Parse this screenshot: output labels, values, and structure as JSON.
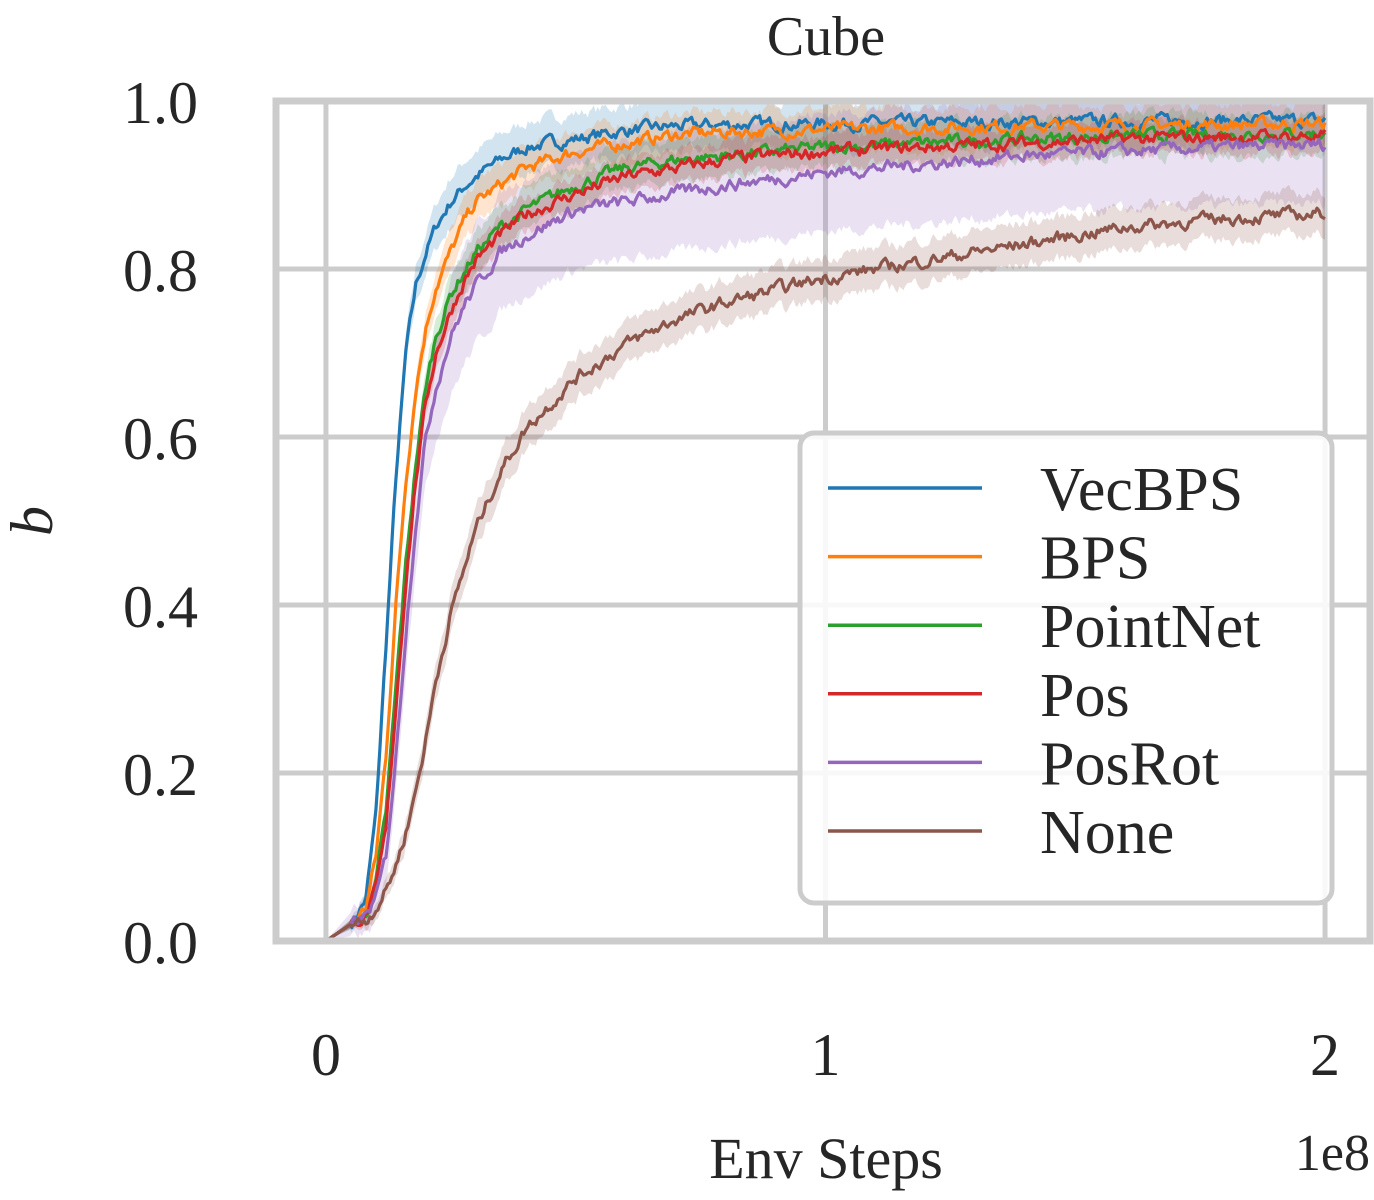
{
  "chart_data": {
    "type": "line",
    "title": "Cube",
    "xlabel": "Env Steps",
    "ylabel": "b",
    "x_offset_label": "1e8",
    "xlim": [
      -0.1,
      2.09
    ],
    "ylim": [
      0.0,
      1.0
    ],
    "xticks": [
      0,
      1,
      2
    ],
    "xtick_labels": [
      "0",
      "1",
      "2"
    ],
    "yticks": [
      0.0,
      0.2,
      0.4,
      0.6,
      0.8,
      1.0
    ],
    "ytick_labels": [
      "0.0",
      "0.2",
      "0.4",
      "0.6",
      "0.8",
      "1.0"
    ],
    "grid": true,
    "legend_position": "center-right",
    "x": [
      0.0,
      0.05,
      0.08,
      0.1,
      0.12,
      0.14,
      0.16,
      0.18,
      0.2,
      0.22,
      0.25,
      0.28,
      0.3,
      0.35,
      0.4,
      0.5,
      0.6,
      0.7,
      0.8,
      1.0,
      1.2,
      1.4,
      1.6,
      1.8,
      2.0
    ],
    "series": [
      {
        "name": "VecBPS",
        "color": "#1f77b4",
        "band": 0.03,
        "values": [
          0.0,
          0.02,
          0.05,
          0.15,
          0.35,
          0.55,
          0.7,
          0.78,
          0.82,
          0.85,
          0.88,
          0.9,
          0.91,
          0.93,
          0.945,
          0.955,
          0.965,
          0.97,
          0.972,
          0.973,
          0.974,
          0.975,
          0.976,
          0.977,
          0.977
        ]
      },
      {
        "name": "BPS",
        "color": "#ff7f0e",
        "band": 0.025,
        "values": [
          0.0,
          0.02,
          0.04,
          0.1,
          0.22,
          0.4,
          0.55,
          0.66,
          0.73,
          0.78,
          0.82,
          0.86,
          0.88,
          0.9,
          0.92,
          0.94,
          0.95,
          0.96,
          0.963,
          0.966,
          0.968,
          0.97,
          0.971,
          0.972,
          0.973
        ]
      },
      {
        "name": "PointNet",
        "color": "#2ca02c",
        "band": 0.025,
        "values": [
          0.0,
          0.02,
          0.03,
          0.07,
          0.15,
          0.3,
          0.45,
          0.57,
          0.66,
          0.72,
          0.77,
          0.8,
          0.82,
          0.85,
          0.87,
          0.9,
          0.92,
          0.93,
          0.935,
          0.945,
          0.95,
          0.955,
          0.958,
          0.96,
          0.962
        ]
      },
      {
        "name": "Pos",
        "color": "#d62728",
        "band": 0.02,
        "values": [
          0.0,
          0.02,
          0.03,
          0.06,
          0.13,
          0.28,
          0.43,
          0.55,
          0.64,
          0.7,
          0.75,
          0.79,
          0.81,
          0.84,
          0.865,
          0.89,
          0.91,
          0.92,
          0.93,
          0.94,
          0.945,
          0.95,
          0.955,
          0.957,
          0.958
        ]
      },
      {
        "name": "PosRot",
        "color": "#9467bd",
        "band": 0.07,
        "values": [
          0.0,
          0.02,
          0.03,
          0.05,
          0.1,
          0.22,
          0.37,
          0.5,
          0.6,
          0.66,
          0.72,
          0.76,
          0.78,
          0.82,
          0.84,
          0.87,
          0.88,
          0.89,
          0.9,
          0.915,
          0.925,
          0.935,
          0.94,
          0.945,
          0.948
        ]
      },
      {
        "name": "None",
        "color": "#8c564b",
        "band": 0.025,
        "values": [
          0.0,
          0.02,
          0.025,
          0.04,
          0.06,
          0.09,
          0.13,
          0.18,
          0.24,
          0.31,
          0.39,
          0.45,
          0.49,
          0.56,
          0.61,
          0.67,
          0.71,
          0.74,
          0.76,
          0.79,
          0.81,
          0.83,
          0.85,
          0.86,
          0.866
        ]
      }
    ]
  }
}
